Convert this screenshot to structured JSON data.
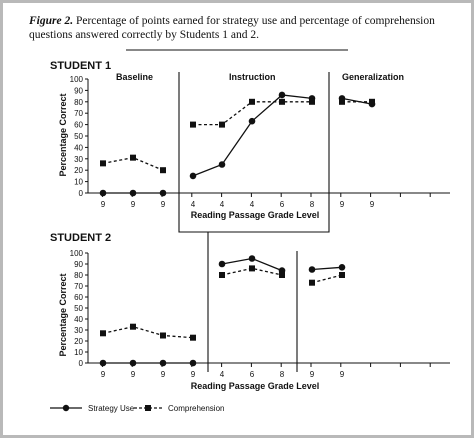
{
  "caption": {
    "figure_label": "Figure 2.",
    "text": "Percentage of points earned for strategy use and percentage of comprehension questions answered correctly by Students 1 and 2."
  },
  "legend": {
    "strategy": "Strategy Use",
    "comprehension": "Comprehension"
  },
  "chart_data": [
    {
      "type": "line",
      "title": "STUDENT 1",
      "xlabel": "Reading Passage Grade Level",
      "ylabel": "Percentage Correct",
      "ylim": [
        0,
        100
      ],
      "yticks": [
        0,
        10,
        20,
        30,
        40,
        50,
        60,
        70,
        80,
        90,
        100
      ],
      "phases": [
        "Baseline",
        "Instruction",
        "Generalization"
      ],
      "x_tick_labels": [
        "9",
        "9",
        "9",
        "4",
        "4",
        "4",
        "6",
        "8",
        "9",
        "9"
      ],
      "series": [
        {
          "name": "Strategy Use",
          "style": "solid",
          "marker": "circle",
          "values": [
            0,
            0,
            0,
            15,
            25,
            63,
            86,
            83,
            83,
            78
          ]
        },
        {
          "name": "Comprehension",
          "style": "dashed",
          "marker": "square",
          "values": [
            26,
            31,
            20,
            60,
            60,
            80,
            80,
            80,
            80,
            80
          ]
        }
      ]
    },
    {
      "type": "line",
      "title": "STUDENT 2",
      "xlabel": "Reading Passage Grade Level",
      "ylabel": "Percentage Correct",
      "ylim": [
        0,
        100
      ],
      "yticks": [
        0,
        10,
        20,
        30,
        40,
        50,
        60,
        70,
        80,
        90,
        100
      ],
      "x_tick_labels": [
        "9",
        "9",
        "9",
        "9",
        "4",
        "6",
        "8",
        "9",
        "9"
      ],
      "series": [
        {
          "name": "Strategy Use",
          "style": "solid",
          "marker": "circle",
          "values": [
            0,
            0,
            0,
            0,
            90,
            95,
            84,
            85,
            87
          ]
        },
        {
          "name": "Comprehension",
          "style": "dashed",
          "marker": "square",
          "values": [
            27,
            33,
            25,
            23,
            80,
            86,
            80,
            73,
            80
          ]
        }
      ]
    }
  ]
}
